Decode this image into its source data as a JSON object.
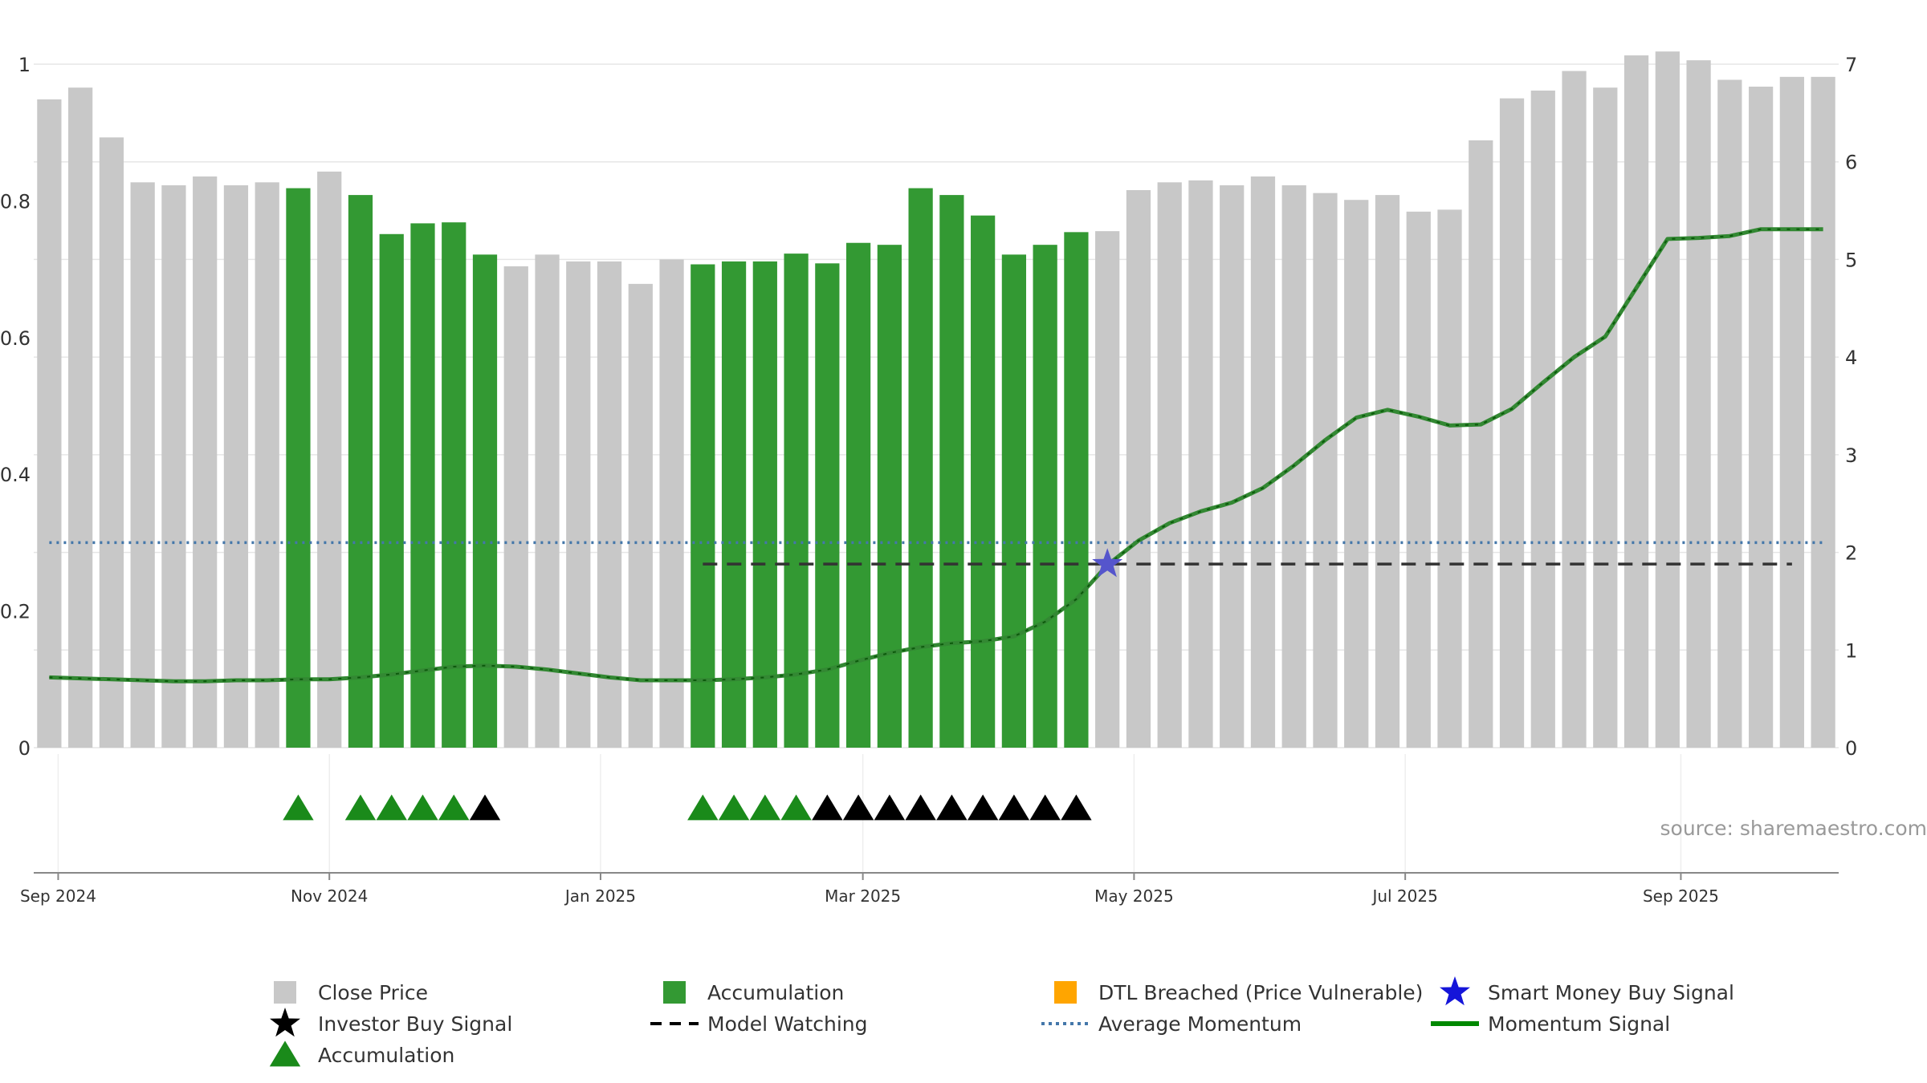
{
  "chart_data": {
    "type": "bar",
    "title": "",
    "ylim_left": [
      0,
      1
    ],
    "ylim_right": [
      0,
      7
    ],
    "y_ticks_left": [
      "0",
      "0.2",
      "0.4",
      "0.6",
      "0.8",
      "1"
    ],
    "y_ticks_right": [
      "0",
      "1",
      "2",
      "3",
      "4",
      "5",
      "6",
      "7"
    ],
    "x_ticks": [
      "Sep 2024",
      "Nov 2024",
      "Jan 2025",
      "Mar 2025",
      "May 2025",
      "Jul 2025",
      "Sep 2025"
    ],
    "source_text": "source: sharemaestro.com",
    "weeks": [
      "2024-08-30",
      "2024-09-06",
      "2024-09-13",
      "2024-09-20",
      "2024-09-27",
      "2024-10-04",
      "2024-10-11",
      "2024-10-18",
      "2024-10-25",
      "2024-11-01",
      "2024-11-08",
      "2024-11-15",
      "2024-11-22",
      "2024-11-29",
      "2024-12-06",
      "2024-12-13",
      "2024-12-20",
      "2024-12-27",
      "2025-01-03",
      "2025-01-10",
      "2025-01-17",
      "2025-01-24",
      "2025-01-31",
      "2025-02-07",
      "2025-02-14",
      "2025-02-21",
      "2025-02-28",
      "2025-03-07",
      "2025-03-14",
      "2025-03-21",
      "2025-03-28",
      "2025-04-04",
      "2025-04-11",
      "2025-04-18",
      "2025-04-25",
      "2025-05-02",
      "2025-05-09",
      "2025-05-16",
      "2025-05-23",
      "2025-05-30",
      "2025-06-06",
      "2025-06-13",
      "2025-06-20",
      "2025-06-27",
      "2025-07-04",
      "2025-07-11",
      "2025-07-18",
      "2025-07-25",
      "2025-08-01",
      "2025-08-08",
      "2025-08-15",
      "2025-08-22",
      "2025-08-29",
      "2025-09-05",
      "2025-09-12",
      "2025-09-19",
      "2025-09-26",
      "2025-10-03"
    ],
    "series": [
      {
        "name": "Close Price",
        "axis": "right",
        "values": [
          6.64,
          6.76,
          6.25,
          5.79,
          5.76,
          5.85,
          5.76,
          5.79,
          5.73,
          5.9,
          5.66,
          5.26,
          5.37,
          5.38,
          5.05,
          4.93,
          5.05,
          4.98,
          4.98,
          4.75,
          5.0,
          4.95,
          4.98,
          4.98,
          5.06,
          4.96,
          5.17,
          5.15,
          5.73,
          5.66,
          5.45,
          5.05,
          5.15,
          5.28,
          5.29,
          5.71,
          5.79,
          5.81,
          5.76,
          5.85,
          5.76,
          5.68,
          5.61,
          5.66,
          5.49,
          5.51,
          6.22,
          6.65,
          6.73,
          6.93,
          6.76,
          7.09,
          7.13,
          7.04,
          6.84,
          6.77,
          6.87,
          6.87
        ]
      },
      {
        "name": "Momentum Signal",
        "axis": "right",
        "values": [
          0.72,
          0.71,
          0.7,
          0.69,
          0.68,
          0.68,
          0.69,
          0.69,
          0.7,
          0.7,
          0.72,
          0.75,
          0.79,
          0.83,
          0.84,
          0.83,
          0.8,
          0.76,
          0.72,
          0.69,
          0.69,
          0.69,
          0.7,
          0.72,
          0.75,
          0.8,
          0.89,
          0.97,
          1.03,
          1.07,
          1.09,
          1.14,
          1.29,
          1.52,
          1.87,
          2.12,
          2.3,
          2.42,
          2.51,
          2.66,
          2.89,
          3.15,
          3.38,
          3.46,
          3.39,
          3.3,
          3.31,
          3.47,
          3.74,
          4.0,
          4.21,
          4.71,
          5.21,
          5.22,
          5.24,
          5.31,
          5.31,
          5.31
        ]
      }
    ],
    "accumulation_bar_weeks": [
      8,
      10,
      11,
      12,
      13,
      14,
      21,
      22,
      23,
      24,
      25,
      26,
      27,
      28,
      29,
      30,
      31,
      32,
      33
    ],
    "markers": {
      "accumulation_triangles": [
        8,
        10,
        11,
        12,
        13,
        21,
        22,
        23,
        24
      ],
      "investor_buy_triangles": [
        14,
        25,
        26,
        27,
        28,
        29,
        30,
        31,
        32,
        33
      ],
      "smart_money_star": {
        "week": 34,
        "value": 1.88
      }
    },
    "average_momentum": 2.1,
    "model_watching": {
      "value": 1.88,
      "start_week": 21,
      "end_week": 56
    },
    "legend_placement": "bottom",
    "grid": true,
    "colors": {
      "close_price": "#c8c8c8",
      "accumulation_bar": "#339933",
      "accumulation_marker": "#1a8a1a",
      "investor_buy": "#000000",
      "dtl_breached": "#ffa500",
      "smart_money": "#1515d9",
      "smart_money_star_plot": "#5555cc",
      "average_momentum": "#4477aa",
      "model_watching": "#000000",
      "momentum": "#338833"
    }
  },
  "legend": {
    "items": [
      {
        "label": "Close Price",
        "icon": "gray-square-icon"
      },
      {
        "label": "Accumulation",
        "icon": "green-square-icon"
      },
      {
        "label": "DTL Breached (Price Vulnerable)",
        "icon": "orange-square-icon"
      },
      {
        "label": "Smart Money Buy Signal",
        "icon": "blue-star-icon"
      },
      {
        "label": "Investor Buy Signal",
        "icon": "black-star-icon"
      },
      {
        "label": "Model Watching",
        "icon": "dashed-line-icon"
      },
      {
        "label": "Average Momentum",
        "icon": "dotted-line-icon"
      },
      {
        "label": "Momentum Signal",
        "icon": "green-line-icon"
      },
      {
        "label": "Accumulation",
        "icon": "green-triangle-icon"
      }
    ]
  }
}
